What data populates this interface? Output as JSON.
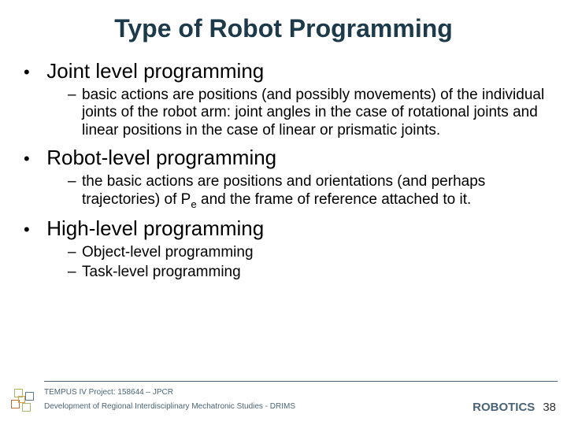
{
  "title": {
    "text": "Type of Robot Programming",
    "fontsize": 32,
    "color": "#1c3a4a"
  },
  "content": {
    "level1_fontsize": 26,
    "level1_color": "#000000",
    "level2_fontsize": 19,
    "level2_color": "#000000",
    "line_height": 1.18,
    "items": [
      {
        "heading": "Joint level programming",
        "sub": [
          "basic actions are positions (and possibly movements) of the individual joints of the robot arm: joint angles in the case of rotational joints and linear positions in the case of linear or prismatic joints."
        ]
      },
      {
        "heading": "Robot-level programming",
        "sub_html": [
          "the basic actions are positions and orientations (and perhaps trajectories) of P<sub class=\"sub\">e</sub> and the frame of reference attached to it."
        ]
      },
      {
        "heading": "High-level programming",
        "sub": [
          "Object-level programming",
          "Task-level programming"
        ]
      }
    ]
  },
  "footer": {
    "line1": "TEMPUS IV Project: 158644 – JPCR",
    "line2": "Development of Regional Interdisciplinary Mechatronic Studies - DRIMS",
    "fontsize": 10,
    "color": "#4a6476",
    "brand": "ROBOTICS",
    "brand_color": "#4a6476",
    "brand_fontsize": 15,
    "page": "38",
    "page_fontsize": 15,
    "page_color": "#333333",
    "logo_colors": {
      "tl": "#a7b86a",
      "tr": "#5a7a8a",
      "bl": "#c56a33",
      "br": "#a7b86a",
      "inner": "#d9a441"
    }
  }
}
